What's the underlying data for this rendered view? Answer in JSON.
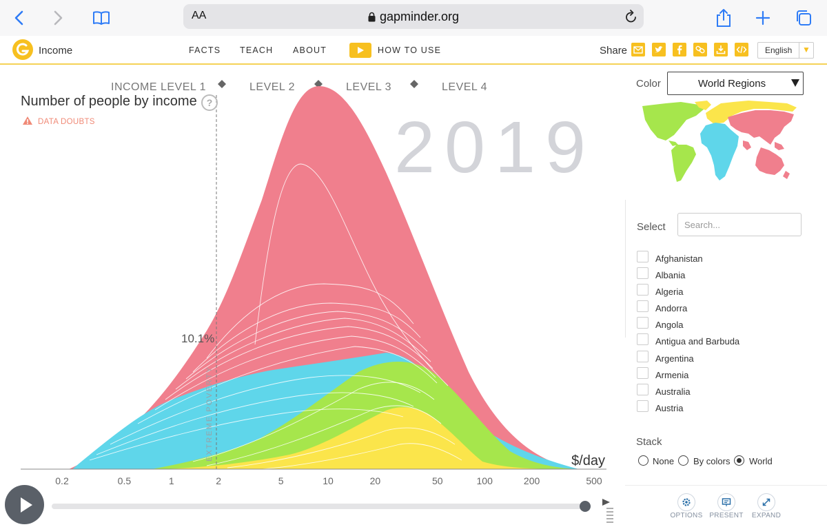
{
  "browser": {
    "text_size_label": "AA",
    "url": "gapminder.org"
  },
  "header": {
    "app_title": "Income",
    "menu": [
      "FACTS",
      "TEACH",
      "ABOUT"
    ],
    "how_to_use": "HOW TO USE",
    "share_label": "Share",
    "share_icons": [
      "mail-icon",
      "twitter-icon",
      "facebook-icon",
      "link-icon",
      "download-icon",
      "embed-icon"
    ],
    "language": "English"
  },
  "chart": {
    "title": "Number of people by income",
    "help": "?",
    "data_doubts": "DATA DOUBTS",
    "year": "2019",
    "levels": [
      "INCOME LEVEL 1",
      "LEVEL 2",
      "LEVEL 3",
      "LEVEL 4"
    ],
    "poverty_label": "EXTREME POVERTY",
    "poverty_percent": "10.1%",
    "x_unit": "$/day"
  },
  "chart_data": {
    "type": "area",
    "title": "Number of people by income",
    "xlabel": "$/day",
    "x_scale": "log",
    "x_ticks": [
      "0.2",
      "0.5",
      "1",
      "2",
      "5",
      "10",
      "20",
      "50",
      "100",
      "200",
      "500"
    ],
    "x_tick_values": [
      0.2,
      0.5,
      1,
      2,
      5,
      10,
      20,
      50,
      100,
      200,
      500
    ],
    "year": "2019",
    "stacking": "World",
    "color_by": "World Regions",
    "extreme_poverty_line": 1.9,
    "extreme_poverty_share": "10.1%",
    "level_boundaries": [
      2,
      8,
      32
    ],
    "series": [
      {
        "name": "Africa",
        "color": "#5fd6ea",
        "peak_x": 2.5
      },
      {
        "name": "Americas",
        "color": "#a6e64c",
        "peak_x": 25
      },
      {
        "name": "Europe",
        "color": "#fbe54b",
        "peak_x": 30
      },
      {
        "name": "Asia",
        "color": "#f07f8d",
        "peak_x": 8
      }
    ]
  },
  "panel": {
    "color_label": "Color",
    "color_value": "World Regions",
    "select_label": "Select",
    "search_placeholder": "Search...",
    "countries": [
      "Afghanistan",
      "Albania",
      "Algeria",
      "Andorra",
      "Angola",
      "Antigua and Barbuda",
      "Argentina",
      "Armenia",
      "Australia",
      "Austria"
    ],
    "stack_label": "Stack",
    "stack_options": [
      "None",
      "By colors",
      "World"
    ],
    "stack_selected": "World"
  },
  "tools": {
    "options": "OPTIONS",
    "present": "PRESENT",
    "expand": "EXPAND"
  },
  "colors": {
    "accent": "#f7c020",
    "asia": "#f07f8d",
    "africa": "#5fd6ea",
    "americas": "#a6e64c",
    "europe": "#fbe54b"
  }
}
